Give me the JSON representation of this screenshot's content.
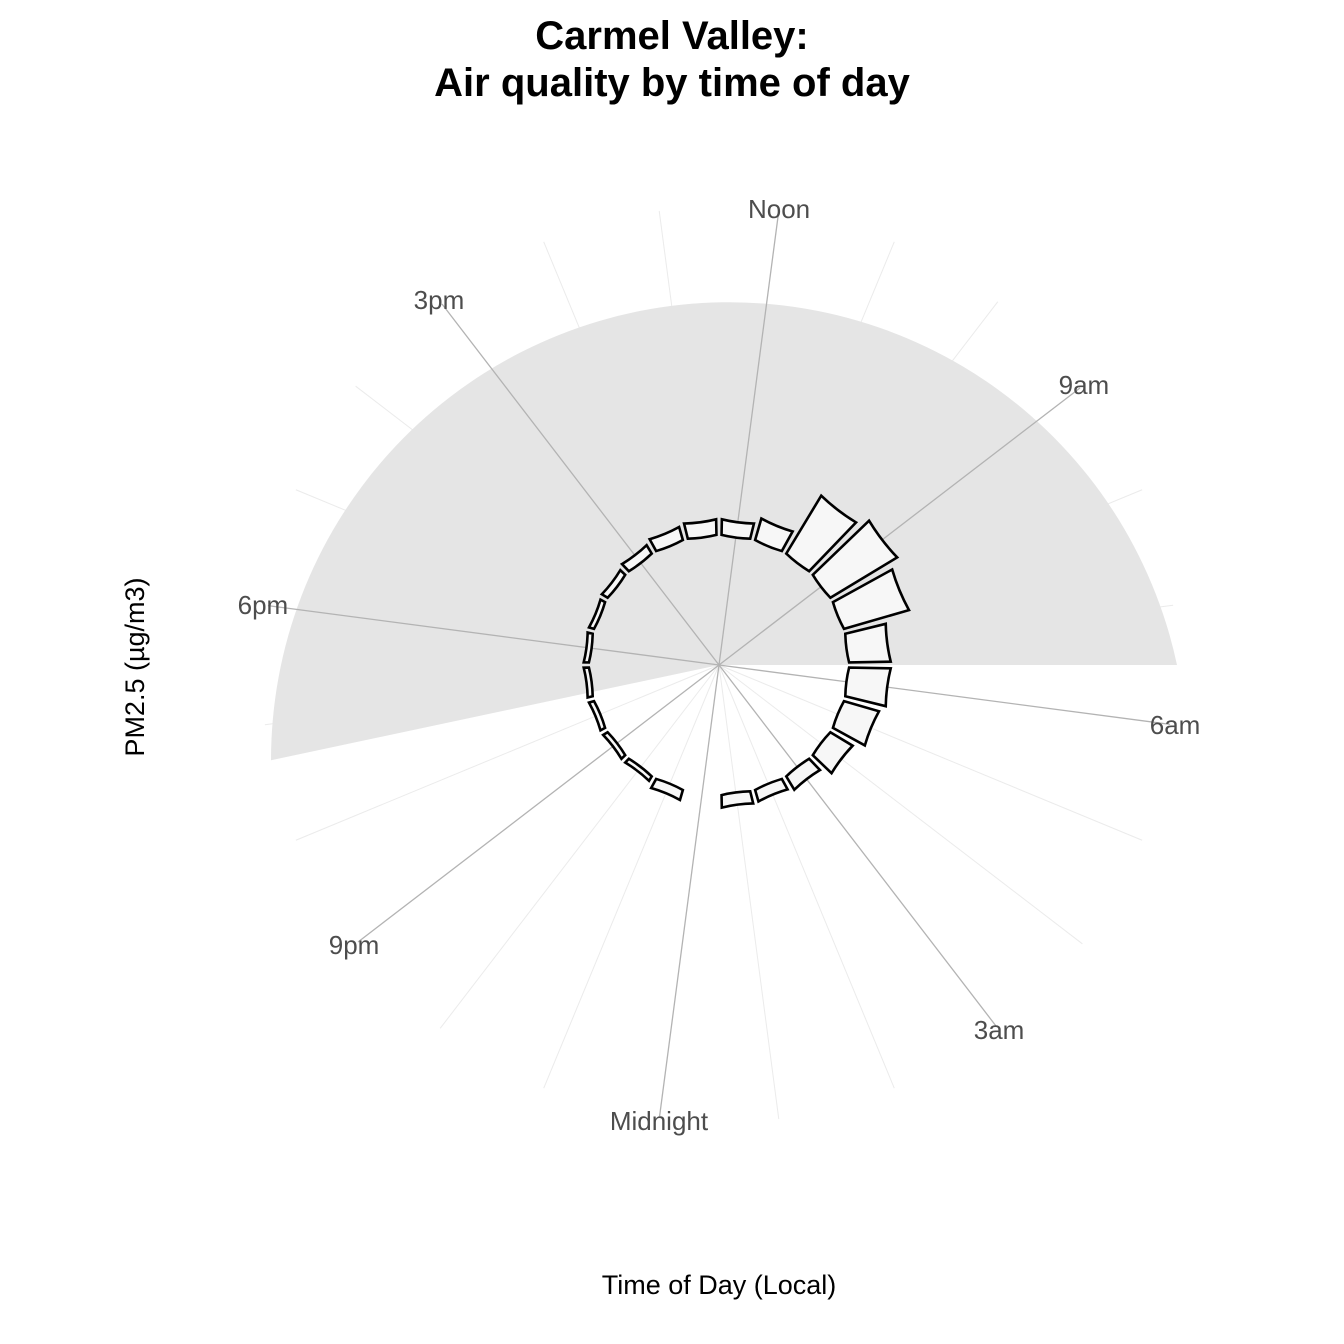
{
  "title": {
    "line1": "Carmel Valley:",
    "line2": "Air quality by time of day"
  },
  "chart_data": {
    "type": "bar",
    "coord": "polar",
    "title": "Carmel Valley:\nAir quality by time of day",
    "xlabel": "Time of Day (Local)",
    "ylabel": "PM2.5 (µg/m3)",
    "hours": [
      0,
      1,
      2,
      3,
      4,
      5,
      6,
      7,
      8,
      9,
      10,
      11,
      12,
      13,
      14,
      15,
      16,
      17,
      18,
      19,
      20,
      21,
      22,
      23
    ],
    "tick_labels": [
      {
        "hour": 0,
        "label": "Midnight"
      },
      {
        "hour": 3,
        "label": "3am"
      },
      {
        "hour": 6,
        "label": "6am"
      },
      {
        "hour": 9,
        "label": "9am"
      },
      {
        "hour": 12,
        "label": "Noon"
      },
      {
        "hour": 15,
        "label": "3pm"
      },
      {
        "hour": 18,
        "label": "6pm"
      },
      {
        "hour": 21,
        "label": "9pm"
      }
    ],
    "values": [
      0,
      2.4,
      2.3,
      3.0,
      5.0,
      7.0,
      8.0,
      8.0,
      13.0,
      15.0,
      13.0,
      4.3,
      3.0,
      3.0,
      2.6,
      1.9,
      1.3,
      1.0,
      1.0,
      1.0,
      1.0,
      1.0,
      1.0,
      2.0
    ],
    "night_shading": {
      "from_hour": 19.3,
      "to_hour": 6.5,
      "color": "#e5e5e5"
    },
    "ylim": [
      -25,
      63
    ],
    "grid": true,
    "bar_fill": "#f7f7f7",
    "bar_stroke": "#000000"
  }
}
